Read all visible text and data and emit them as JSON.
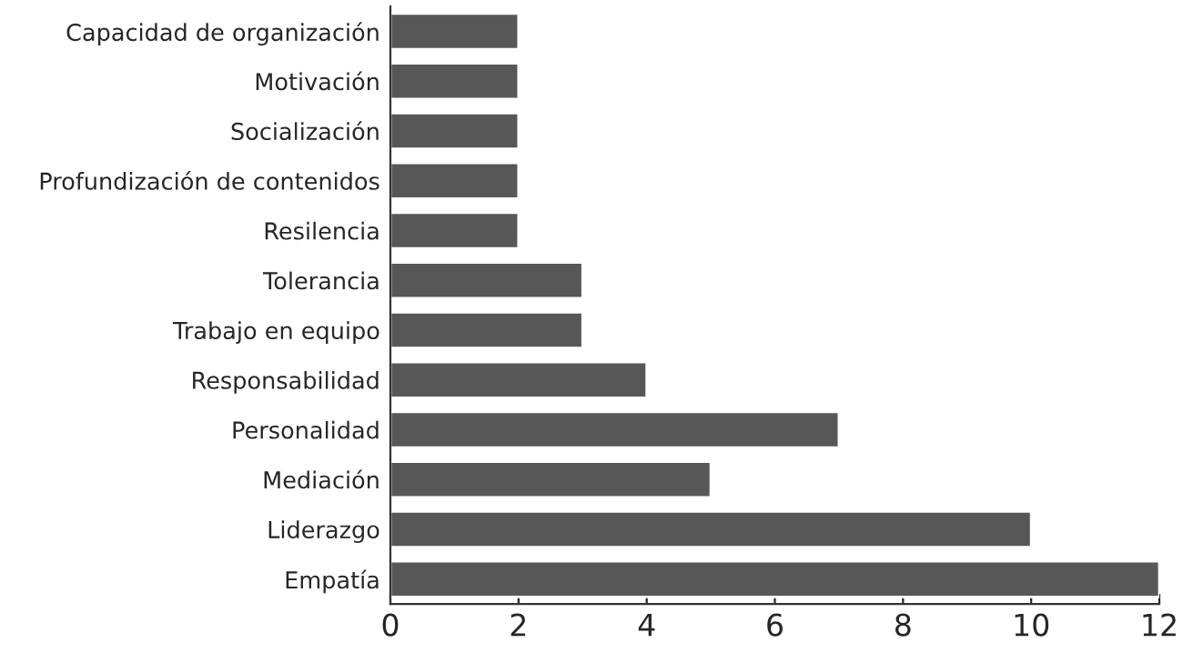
{
  "chart_data": {
    "type": "bar",
    "orientation": "horizontal",
    "categories": [
      "Capacidad de organización",
      "Motivación",
      "Socialización",
      "Profundización de contenidos",
      "Resilencia",
      "Tolerancia",
      "Trabajo en equipo",
      "Responsabilidad",
      "Personalidad",
      "Mediación",
      "Liderazgo",
      "Empatía"
    ],
    "values": [
      2,
      2,
      2,
      2,
      2,
      3,
      3,
      4,
      7,
      5,
      10,
      12
    ],
    "color": "#575757",
    "xlim": [
      0,
      12
    ],
    "xticks": [
      0,
      2,
      4,
      6,
      8,
      10,
      12
    ],
    "grid": false,
    "legend": false
  }
}
